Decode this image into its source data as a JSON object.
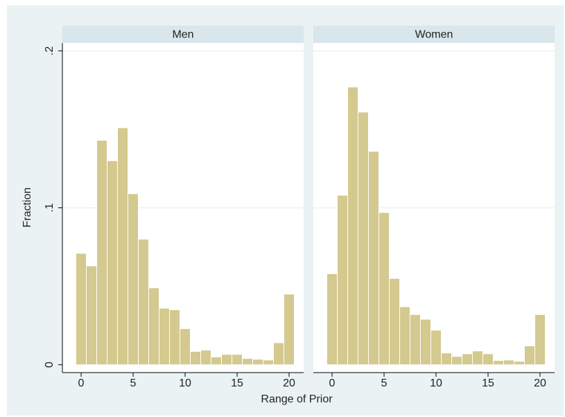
{
  "chart_data": {
    "type": "histogram",
    "y_label": "Fraction",
    "x_label": "Range of Prior",
    "color": "#d4c98e",
    "bins": [
      -0.5,
      0.5,
      1.5,
      2.5,
      3.5,
      4.5,
      5.5,
      6.5,
      7.5,
      8.5,
      9.5,
      10.5,
      11.5,
      12.5,
      13.5,
      14.5,
      15.5,
      16.5,
      17.5,
      18.5,
      19.5,
      20.5
    ],
    "xlim": [
      -1.8,
      21.4
    ],
    "xticks": [
      0,
      5,
      10,
      15,
      20
    ],
    "ylim": [
      -0.005,
      0.205
    ],
    "yticks": [
      0,
      {
        "value": 0.1,
        "label": ".1"
      },
      {
        "value": 0.2,
        "label": ".2"
      }
    ],
    "grid": true,
    "panels": [
      {
        "title": "Men",
        "values": [
          0.071,
          0.063,
          0.143,
          0.13,
          0.151,
          0.109,
          0.08,
          0.049,
          0.036,
          0.035,
          0.023,
          0.0085,
          0.0093,
          0.005,
          0.0066,
          0.0066,
          0.004,
          0.0035,
          0.003,
          0.014,
          0.045
        ]
      },
      {
        "title": "Women",
        "values": [
          0.058,
          0.108,
          0.177,
          0.161,
          0.136,
          0.097,
          0.055,
          0.037,
          0.032,
          0.029,
          0.022,
          0.0075,
          0.0053,
          0.007,
          0.0088,
          0.007,
          0.0027,
          0.003,
          0.0022,
          0.012,
          0.032
        ]
      }
    ]
  }
}
